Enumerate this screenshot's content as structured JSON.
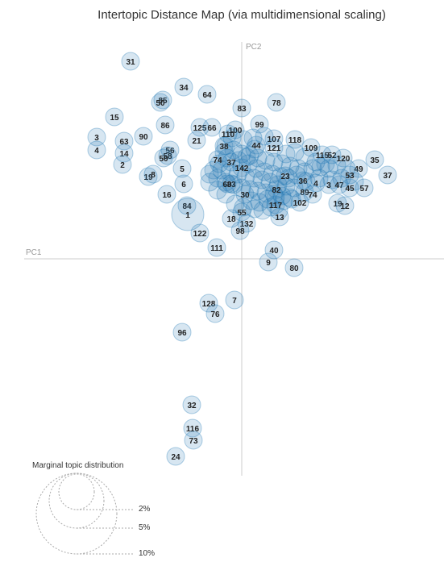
{
  "chart_data": {
    "type": "scatter",
    "title": "Intertopic Distance Map (via multidimensional scaling)",
    "xlabel": "PC1",
    "ylabel": "PC2",
    "legend": {
      "title": "Marginal topic distribution",
      "entries": [
        "2%",
        "5%",
        "10%"
      ],
      "position": "bottom-left"
    },
    "colors": {
      "bubble": "#1f77b4",
      "axis": "#cccccc",
      "legend": "#aaaaaa"
    },
    "xlim": [
      -270,
      250
    ],
    "ylim": [
      -270,
      270
    ],
    "points": [
      {
        "label": "31",
        "x": -138,
        "y": 245
      },
      {
        "label": "34",
        "x": -72,
        "y": 213
      },
      {
        "label": "64",
        "x": -43,
        "y": 204
      },
      {
        "label": "85",
        "x": -98,
        "y": 197
      },
      {
        "label": "50",
        "x": -101,
        "y": 194
      },
      {
        "label": "83",
        "x": 0,
        "y": 187
      },
      {
        "label": "78",
        "x": 43,
        "y": 194
      },
      {
        "label": "15",
        "x": -158,
        "y": 176
      },
      {
        "label": "86",
        "x": -95,
        "y": 166
      },
      {
        "label": "90",
        "x": -122,
        "y": 152
      },
      {
        "label": "125",
        "x": -52,
        "y": 163
      },
      {
        "label": "66",
        "x": -37,
        "y": 163
      },
      {
        "label": "21",
        "x": -56,
        "y": 147
      },
      {
        "label": "99",
        "x": 22,
        "y": 167
      },
      {
        "label": "100",
        "x": -8,
        "y": 160
      },
      {
        "label": "110",
        "x": -17,
        "y": 155
      },
      {
        "label": "3",
        "x": -180,
        "y": 151
      },
      {
        "label": "63",
        "x": -146,
        "y": 146
      },
      {
        "label": "4",
        "x": -180,
        "y": 135
      },
      {
        "label": "14",
        "x": -146,
        "y": 131
      },
      {
        "label": "2",
        "x": -148,
        "y": 117
      },
      {
        "label": "56",
        "x": -89,
        "y": 135
      },
      {
        "label": "58",
        "x": -92,
        "y": 128
      },
      {
        "label": "50",
        "x": -97,
        "y": 125
      },
      {
        "label": "38",
        "x": -22,
        "y": 140
      },
      {
        "label": "44",
        "x": 18,
        "y": 141
      },
      {
        "label": "107",
        "x": 40,
        "y": 149
      },
      {
        "label": "121",
        "x": 40,
        "y": 138
      },
      {
        "label": "109",
        "x": 86,
        "y": 138
      },
      {
        "label": "118",
        "x": 66,
        "y": 148
      },
      {
        "label": "115",
        "x": 100,
        "y": 129
      },
      {
        "label": "52",
        "x": 112,
        "y": 129
      },
      {
        "label": "120",
        "x": 126,
        "y": 125
      },
      {
        "label": "35",
        "x": 165,
        "y": 123
      },
      {
        "label": "49",
        "x": 145,
        "y": 112
      },
      {
        "label": "37",
        "x": 181,
        "y": 104
      },
      {
        "label": "5",
        "x": -74,
        "y": 112
      },
      {
        "label": "19",
        "x": -116,
        "y": 102
      },
      {
        "label": "8",
        "x": -110,
        "y": 105
      },
      {
        "label": "6",
        "x": -72,
        "y": 93
      },
      {
        "label": "16",
        "x": -93,
        "y": 80
      },
      {
        "label": "74",
        "x": -30,
        "y": 123
      },
      {
        "label": "37",
        "x": -13,
        "y": 120
      },
      {
        "label": "142",
        "x": 0,
        "y": 113
      },
      {
        "label": "33",
        "x": -13,
        "y": 93
      },
      {
        "label": "60",
        "x": -18,
        "y": 93
      },
      {
        "label": "30",
        "x": 4,
        "y": 80
      },
      {
        "label": "82",
        "x": 43,
        "y": 86
      },
      {
        "label": "23",
        "x": 54,
        "y": 103
      },
      {
        "label": "36",
        "x": 76,
        "y": 97
      },
      {
        "label": "4",
        "x": 92,
        "y": 94
      },
      {
        "label": "3",
        "x": 108,
        "y": 92
      },
      {
        "label": "47",
        "x": 121,
        "y": 92
      },
      {
        "label": "45",
        "x": 134,
        "y": 88
      },
      {
        "label": "57",
        "x": 152,
        "y": 88
      },
      {
        "label": "53",
        "x": 134,
        "y": 104
      },
      {
        "label": "19",
        "x": 119,
        "y": 69
      },
      {
        "label": "12",
        "x": 128,
        "y": 66
      },
      {
        "label": "89",
        "x": 78,
        "y": 83
      },
      {
        "label": "74",
        "x": 88,
        "y": 80
      },
      {
        "label": "102",
        "x": 72,
        "y": 70
      },
      {
        "label": "117",
        "x": 42,
        "y": 67
      },
      {
        "label": "13",
        "x": 47,
        "y": 52
      },
      {
        "label": "84",
        "x": -68,
        "y": 66
      },
      {
        "label": "1",
        "x": -67,
        "y": 55
      },
      {
        "label": "55",
        "x": 0,
        "y": 58
      },
      {
        "label": "18",
        "x": -13,
        "y": 50
      },
      {
        "label": "132",
        "x": 6,
        "y": 44
      },
      {
        "label": "98",
        "x": -2,
        "y": 35
      },
      {
        "label": "122",
        "x": -52,
        "y": 32
      },
      {
        "label": "111",
        "x": -31,
        "y": 14
      },
      {
        "label": "40",
        "x": 40,
        "y": 11
      },
      {
        "label": "9",
        "x": 33,
        "y": -4
      },
      {
        "label": "80",
        "x": 65,
        "y": -11
      },
      {
        "label": "7",
        "x": -9,
        "y": -51
      },
      {
        "label": "128",
        "x": -41,
        "y": -55
      },
      {
        "label": "76",
        "x": -33,
        "y": -68
      },
      {
        "label": "96",
        "x": -74,
        "y": -91
      },
      {
        "label": "32",
        "x": -62,
        "y": -181
      },
      {
        "label": "116",
        "x": -61,
        "y": -210
      },
      {
        "label": "73",
        "x": -60,
        "y": -225
      },
      {
        "label": "24",
        "x": -82,
        "y": -245
      }
    ],
    "cluster_points": [
      [
        -20,
        140
      ],
      [
        -10,
        135
      ],
      [
        0,
        130
      ],
      [
        10,
        128
      ],
      [
        20,
        125
      ],
      [
        30,
        122
      ],
      [
        40,
        120
      ],
      [
        50,
        118
      ],
      [
        60,
        115
      ],
      [
        70,
        112
      ],
      [
        -25,
        110
      ],
      [
        -15,
        108
      ],
      [
        -5,
        105
      ],
      [
        5,
        102
      ],
      [
        15,
        100
      ],
      [
        25,
        98
      ],
      [
        35,
        95
      ],
      [
        45,
        92
      ],
      [
        55,
        90
      ],
      [
        65,
        88
      ],
      [
        -30,
        100
      ],
      [
        -20,
        95
      ],
      [
        -10,
        92
      ],
      [
        0,
        88
      ],
      [
        10,
        86
      ],
      [
        20,
        84
      ],
      [
        30,
        82
      ],
      [
        40,
        80
      ],
      [
        50,
        78
      ],
      [
        60,
        76
      ],
      [
        -35,
        110
      ],
      [
        -40,
        105
      ],
      [
        -28,
        118
      ],
      [
        -18,
        125
      ],
      [
        8,
        118
      ],
      [
        18,
        112
      ],
      [
        28,
        108
      ],
      [
        38,
        105
      ],
      [
        48,
        102
      ],
      [
        58,
        100
      ],
      [
        68,
        104
      ],
      [
        78,
        108
      ],
      [
        88,
        112
      ],
      [
        98,
        114
      ],
      [
        108,
        112
      ],
      [
        80,
        96
      ],
      [
        96,
        100
      ],
      [
        112,
        98
      ],
      [
        124,
        100
      ],
      [
        140,
        96
      ],
      [
        12,
        72
      ],
      [
        22,
        70
      ],
      [
        32,
        74
      ],
      [
        42,
        76
      ],
      [
        52,
        72
      ],
      [
        62,
        74
      ],
      [
        16,
        62
      ],
      [
        26,
        60
      ],
      [
        36,
        64
      ],
      [
        46,
        60
      ],
      [
        -8,
        68
      ],
      [
        2,
        64
      ],
      [
        -20,
        80
      ],
      [
        -30,
        85
      ],
      [
        -40,
        95
      ],
      [
        -22,
        132
      ],
      [
        -12,
        150
      ],
      [
        2,
        148
      ],
      [
        14,
        150
      ],
      [
        28,
        152
      ],
      [
        55,
        130
      ],
      [
        66,
        132
      ],
      [
        78,
        126
      ],
      [
        92,
        120
      ],
      [
        104,
        118
      ],
      [
        118,
        116
      ],
      [
        130,
        112
      ],
      [
        -4,
        122
      ],
      [
        6,
        126
      ],
      [
        16,
        136
      ]
    ]
  }
}
